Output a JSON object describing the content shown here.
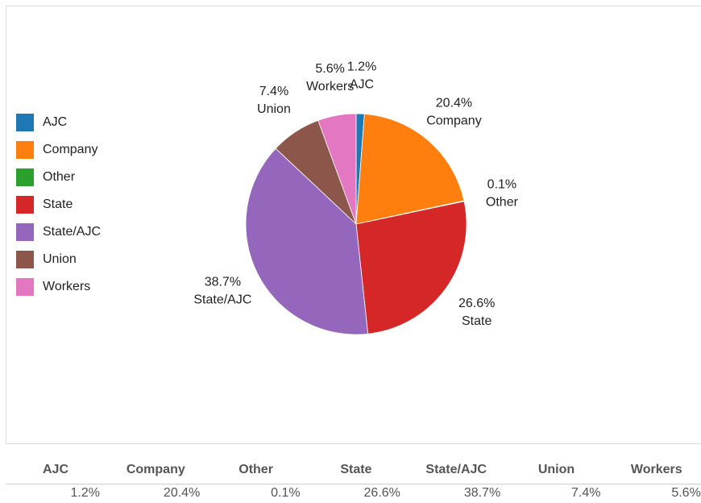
{
  "chart_data": {
    "type": "pie",
    "categories": [
      "AJC",
      "Company",
      "Other",
      "State",
      "State/AJC",
      "Union",
      "Workers"
    ],
    "values": [
      1.2,
      20.4,
      0.1,
      26.6,
      38.7,
      7.4,
      5.6
    ],
    "value_labels": [
      "1.2%",
      "20.4%",
      "0.1%",
      "26.6%",
      "38.7%",
      "7.4%",
      "5.6%"
    ],
    "colors": [
      "#1f77b4",
      "#ff7f0e",
      "#2ca02c",
      "#d62728",
      "#9467bd",
      "#8c564b",
      "#e377c2"
    ],
    "legend": "left"
  }
}
